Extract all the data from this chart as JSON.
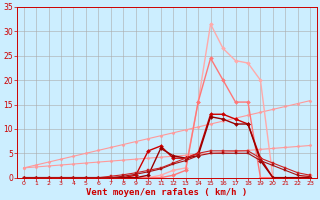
{
  "x": [
    0,
    1,
    2,
    3,
    4,
    5,
    6,
    7,
    8,
    9,
    10,
    11,
    12,
    13,
    14,
    15,
    16,
    17,
    18,
    19,
    20,
    21,
    22,
    23
  ],
  "background_color": "#cceeff",
  "grid_color": "#aaaaaa",
  "xlabel": "Vent moyen/en rafales ( km/h )",
  "xlabel_color": "#cc0000",
  "tick_color": "#cc0000",
  "lines": [
    {
      "y": [
        2.0,
        2.2,
        2.4,
        2.6,
        2.8,
        3.0,
        3.2,
        3.4,
        3.6,
        3.8,
        4.0,
        4.2,
        4.4,
        4.6,
        4.8,
        5.0,
        5.2,
        5.4,
        5.6,
        5.8,
        6.0,
        6.2,
        6.4,
        6.6
      ],
      "color": "#ff9999",
      "marker": "D",
      "markersize": 1.5,
      "linewidth": 0.8,
      "linestyle": "-"
    },
    {
      "y": [
        2.0,
        2.6,
        3.2,
        3.8,
        4.4,
        5.0,
        5.6,
        6.2,
        6.8,
        7.4,
        8.0,
        8.6,
        9.2,
        9.8,
        10.4,
        11.0,
        11.6,
        12.2,
        12.8,
        13.4,
        14.0,
        14.6,
        15.2,
        15.8
      ],
      "color": "#ff9999",
      "marker": "D",
      "markersize": 1.5,
      "linewidth": 0.8,
      "linestyle": "-"
    },
    {
      "y": [
        0,
        0,
        0,
        0,
        0,
        0,
        0,
        0,
        0,
        0,
        0,
        0.5,
        1.5,
        2,
        15.5,
        31.5,
        26.5,
        24.0,
        23.5,
        20.0,
        0,
        0,
        0,
        0.5
      ],
      "color": "#ffaaaa",
      "marker": "D",
      "markersize": 2,
      "linewidth": 1.0,
      "linestyle": "-"
    },
    {
      "y": [
        0,
        0,
        0,
        0,
        0,
        0,
        0,
        0,
        0,
        0,
        0,
        0,
        0.5,
        1.5,
        15.5,
        24.5,
        20.0,
        15.5,
        15.5,
        0,
        0,
        0,
        0,
        0
      ],
      "color": "#ff7777",
      "marker": "D",
      "markersize": 2,
      "linewidth": 1.0,
      "linestyle": "-"
    },
    {
      "y": [
        0,
        0,
        0,
        0,
        0,
        0,
        0,
        0,
        0,
        0.5,
        5.5,
        6.5,
        4,
        4,
        5,
        13,
        13,
        12,
        11,
        4,
        0,
        0,
        0,
        0
      ],
      "color": "#cc0000",
      "marker": "D",
      "markersize": 2,
      "linewidth": 1.0,
      "linestyle": "-"
    },
    {
      "y": [
        0,
        0,
        0,
        0,
        0,
        0,
        0,
        0,
        0,
        0,
        0.5,
        6,
        4.5,
        4,
        4.5,
        12.5,
        12,
        11,
        11,
        3.5,
        0,
        0,
        0,
        0
      ],
      "color": "#990000",
      "marker": "D",
      "markersize": 2,
      "linewidth": 1.0,
      "linestyle": "-"
    },
    {
      "y": [
        0,
        0,
        0,
        0,
        0,
        0,
        0,
        0.3,
        0.6,
        1.0,
        1.5,
        2.0,
        3.0,
        4.0,
        5.0,
        5.5,
        5.5,
        5.5,
        5.5,
        4.0,
        3.0,
        2.0,
        1.0,
        0.5
      ],
      "color": "#cc2222",
      "marker": "s",
      "markersize": 1.5,
      "linewidth": 0.8,
      "linestyle": "-"
    },
    {
      "y": [
        0,
        0,
        0,
        0,
        0,
        0,
        0,
        0,
        0.3,
        0.7,
        1.2,
        1.8,
        2.8,
        3.5,
        4.5,
        5.0,
        5.0,
        5.0,
        5.0,
        3.5,
        2.5,
        1.5,
        0.5,
        0.2
      ],
      "color": "#aa1111",
      "marker": "s",
      "markersize": 1.5,
      "linewidth": 0.8,
      "linestyle": "-"
    }
  ],
  "ylim": [
    0,
    35
  ],
  "yticks": [
    0,
    5,
    10,
    15,
    20,
    25,
    30,
    35
  ],
  "xlim": [
    -0.5,
    23.5
  ]
}
